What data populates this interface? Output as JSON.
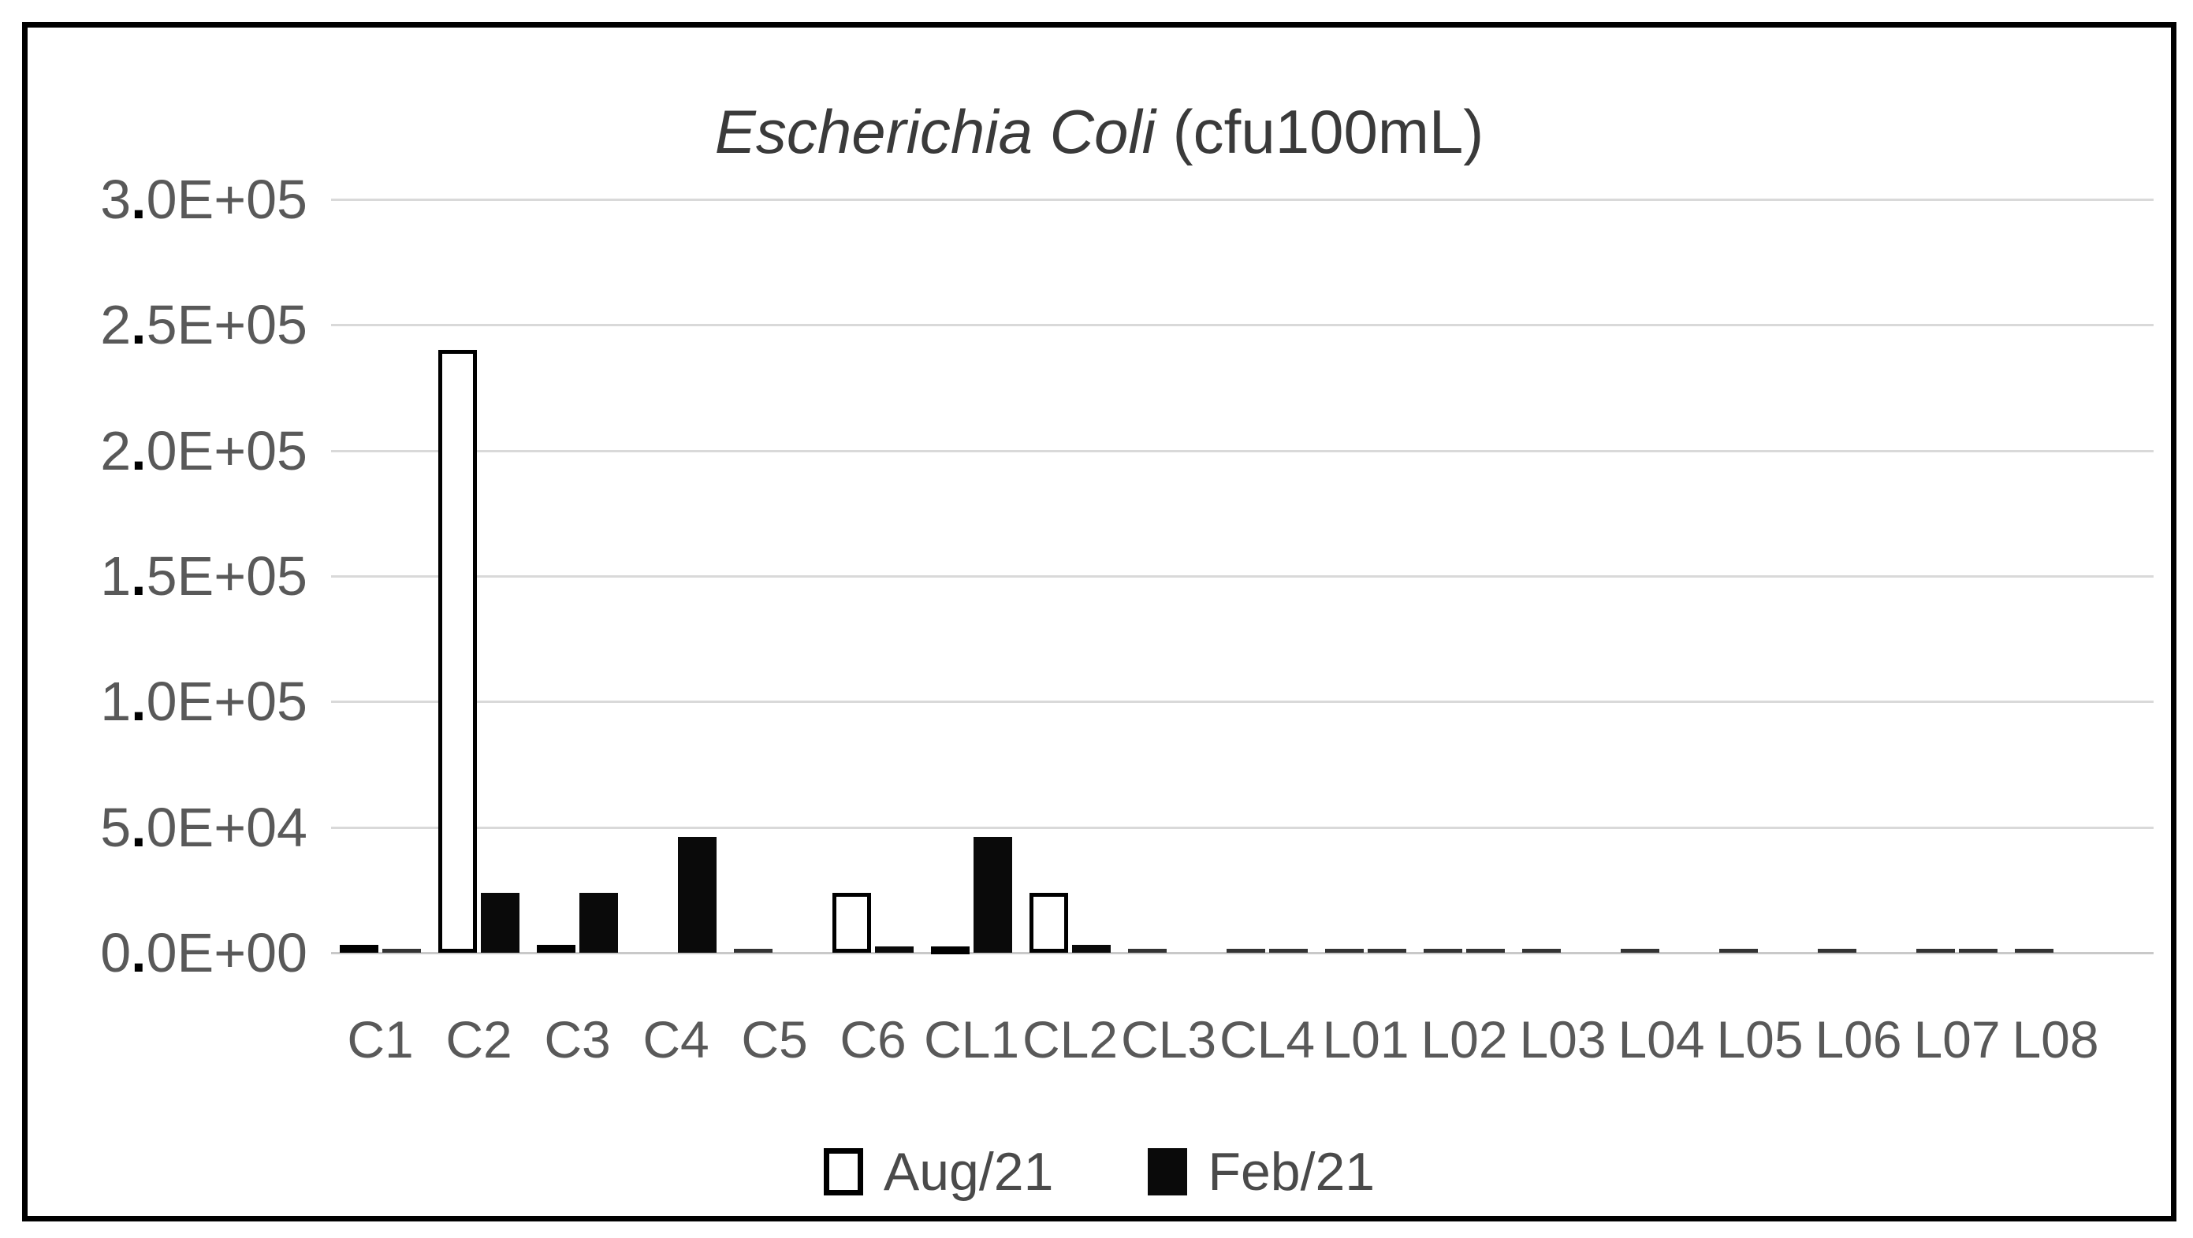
{
  "chart_data": {
    "type": "bar",
    "title": "Escherichia Coli (cfu100mL)",
    "title_italic": "Escherichia Coli",
    "title_unit": " (cfu100mL)",
    "categories": [
      "C1",
      "C2",
      "C3",
      "C4",
      "C5",
      "C6",
      "CL1",
      "CL2",
      "CL3",
      "CL4",
      "L01",
      "L02",
      "L03",
      "L04",
      "L05",
      "L06",
      "L07",
      "L08"
    ],
    "series": [
      {
        "name": "Aug/21",
        "style": "white",
        "values": [
          3200,
          240000,
          3200,
          0,
          1500,
          24000,
          2600,
          24000,
          1500,
          1500,
          1500,
          1500,
          1500,
          1500,
          1500,
          1500,
          1500,
          1500
        ]
      },
      {
        "name": "Feb/21",
        "style": "black",
        "values": [
          1500,
          24000,
          24000,
          46000,
          0,
          2600,
          46000,
          3000,
          0,
          1500,
          1500,
          1500,
          0,
          0,
          0,
          0,
          1500,
          0
        ]
      }
    ],
    "yticks": [
      {
        "label": "3.0E+05",
        "value": 300000
      },
      {
        "label": "2.5E+05",
        "value": 250000
      },
      {
        "label": "2.0E+05",
        "value": 200000
      },
      {
        "label": "1.5E+05",
        "value": 150000
      },
      {
        "label": "1.0E+05",
        "value": 100000
      },
      {
        "label": "5.0E+04",
        "value": 50000
      },
      {
        "label": "0.0E+00",
        "value": 0
      }
    ],
    "ylim": [
      0,
      300000
    ],
    "grid": "horizontal",
    "legend_position": "bottom",
    "colors": {
      "gridline": "#d9d9d9",
      "axis_text": "#595959",
      "title_text": "#3a3a3a",
      "bar_white_fill": "#ffffff",
      "bar_outline": "#000000",
      "bar_black_fill": "#0a0a0a",
      "frame_border": "#000000"
    }
  }
}
